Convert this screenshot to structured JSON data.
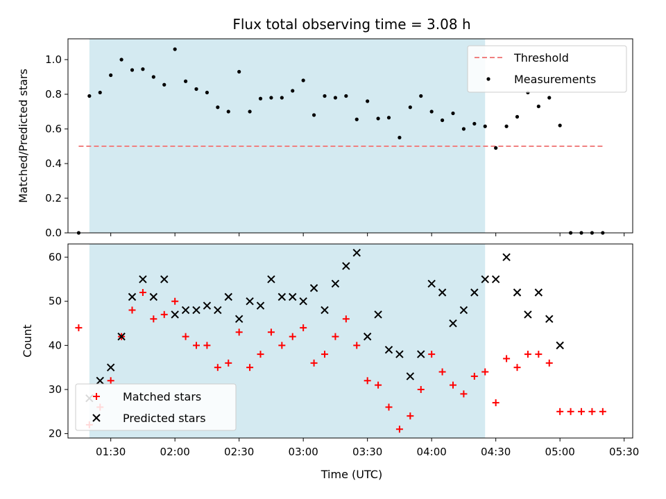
{
  "chart_data": [
    {
      "type": "scatter",
      "title": "Flux total observing time = 3.08 h",
      "xlabel": "",
      "ylabel": "Matched/Predicted stars",
      "x_unit": "time (UTC)",
      "ylim": [
        0,
        1.12
      ],
      "yticks": [
        "0.0",
        "0.2",
        "0.4",
        "0.6",
        "0.8",
        "1.0"
      ],
      "shaded_span": [
        "01:20",
        "04:25"
      ],
      "shade_color": "#d4eaf1",
      "legend_position": "top-right",
      "threshold": {
        "name": "Threshold",
        "y": 0.5,
        "x": [
          "01:15",
          "05:20"
        ],
        "color": "#f08080",
        "style": "dashed"
      },
      "series": [
        {
          "name": "Measurements",
          "color": "#000000",
          "marker": "dot",
          "x": [
            "01:15",
            "01:20",
            "01:25",
            "01:30",
            "01:35",
            "01:40",
            "01:45",
            "01:50",
            "01:55",
            "02:00",
            "02:05",
            "02:10",
            "02:15",
            "02:20",
            "02:25",
            "02:30",
            "02:35",
            "02:40",
            "02:45",
            "02:50",
            "02:55",
            "03:00",
            "03:05",
            "03:10",
            "03:15",
            "03:20",
            "03:25",
            "03:30",
            "03:35",
            "03:40",
            "03:45",
            "03:50",
            "03:55",
            "04:00",
            "04:05",
            "04:10",
            "04:15",
            "04:20",
            "04:25",
            "04:30",
            "04:35",
            "04:40",
            "04:45",
            "04:50",
            "04:55",
            "05:00",
            "05:05",
            "05:10",
            "05:15",
            "05:20"
          ],
          "values": [
            0.0,
            0.79,
            0.81,
            0.91,
            1.0,
            0.94,
            0.945,
            0.9,
            0.855,
            1.06,
            0.875,
            0.83,
            0.81,
            0.725,
            0.7,
            0.93,
            0.7,
            0.775,
            0.78,
            0.78,
            0.82,
            0.88,
            0.68,
            0.79,
            0.78,
            0.79,
            0.655,
            0.76,
            0.66,
            0.665,
            0.55,
            0.725,
            0.79,
            0.7,
            0.65,
            0.69,
            0.6,
            0.63,
            0.615,
            0.49,
            0.615,
            0.67,
            0.81,
            0.73,
            0.78,
            0.62,
            0.0,
            0.0,
            0.0,
            0.0
          ]
        }
      ]
    },
    {
      "type": "scatter",
      "title": "",
      "xlabel": "Time (UTC)",
      "ylabel": "Count",
      "ylim": [
        19,
        63
      ],
      "yticks": [
        "20",
        "30",
        "40",
        "50",
        "60"
      ],
      "xticks": [
        "01:30",
        "02:00",
        "02:30",
        "03:00",
        "03:30",
        "04:00",
        "04:30",
        "05:00",
        "05:30"
      ],
      "shaded_span": [
        "01:20",
        "04:25"
      ],
      "legend_position": "lower-left",
      "series": [
        {
          "name": "Matched stars",
          "color": "#ff0000",
          "marker": "plus",
          "x": [
            "01:15",
            "01:20",
            "01:25",
            "01:30",
            "01:35",
            "01:40",
            "01:45",
            "01:50",
            "01:55",
            "02:00",
            "02:05",
            "02:10",
            "02:15",
            "02:20",
            "02:25",
            "02:30",
            "02:35",
            "02:40",
            "02:45",
            "02:50",
            "02:55",
            "03:00",
            "03:05",
            "03:10",
            "03:15",
            "03:20",
            "03:25",
            "03:30",
            "03:35",
            "03:40",
            "03:45",
            "03:50",
            "03:55",
            "04:00",
            "04:05",
            "04:10",
            "04:15",
            "04:20",
            "04:25",
            "04:30",
            "04:35",
            "04:40",
            "04:45",
            "04:50",
            "04:55",
            "05:00",
            "05:05",
            "05:10",
            "05:15",
            "05:20"
          ],
          "values": [
            44,
            22,
            26,
            32,
            42,
            48,
            52,
            46,
            47,
            50,
            42,
            40,
            40,
            35,
            36,
            43,
            35,
            38,
            43,
            40,
            42,
            44,
            36,
            38,
            42,
            46,
            40,
            32,
            31,
            26,
            21,
            24,
            30,
            38,
            34,
            31,
            29,
            33,
            34,
            27,
            37,
            35,
            38,
            38,
            36,
            25,
            25,
            25,
            25,
            25
          ]
        },
        {
          "name": "Predicted stars",
          "color": "#000000",
          "marker": "x",
          "x": [
            "01:20",
            "01:25",
            "01:30",
            "01:35",
            "01:40",
            "01:45",
            "01:50",
            "01:55",
            "02:00",
            "02:05",
            "02:10",
            "02:15",
            "02:20",
            "02:25",
            "02:30",
            "02:35",
            "02:40",
            "02:45",
            "02:50",
            "02:55",
            "03:00",
            "03:05",
            "03:10",
            "03:15",
            "03:20",
            "03:25",
            "03:30",
            "03:35",
            "03:40",
            "03:45",
            "03:50",
            "03:55",
            "04:00",
            "04:05",
            "04:10",
            "04:15",
            "04:20",
            "04:25",
            "04:30",
            "04:35",
            "04:40",
            "04:45",
            "04:50",
            "04:55",
            "05:00"
          ],
          "values": [
            28,
            32,
            35,
            42,
            51,
            55,
            51,
            55,
            47,
            48,
            48,
            49,
            48,
            51,
            46,
            50,
            49,
            55,
            51,
            51,
            50,
            53,
            48,
            54,
            58,
            61,
            42,
            47,
            39,
            38,
            33,
            38,
            54,
            52,
            45,
            48,
            52,
            55,
            55,
            60,
            52,
            47,
            52,
            46,
            40
          ]
        }
      ]
    }
  ]
}
